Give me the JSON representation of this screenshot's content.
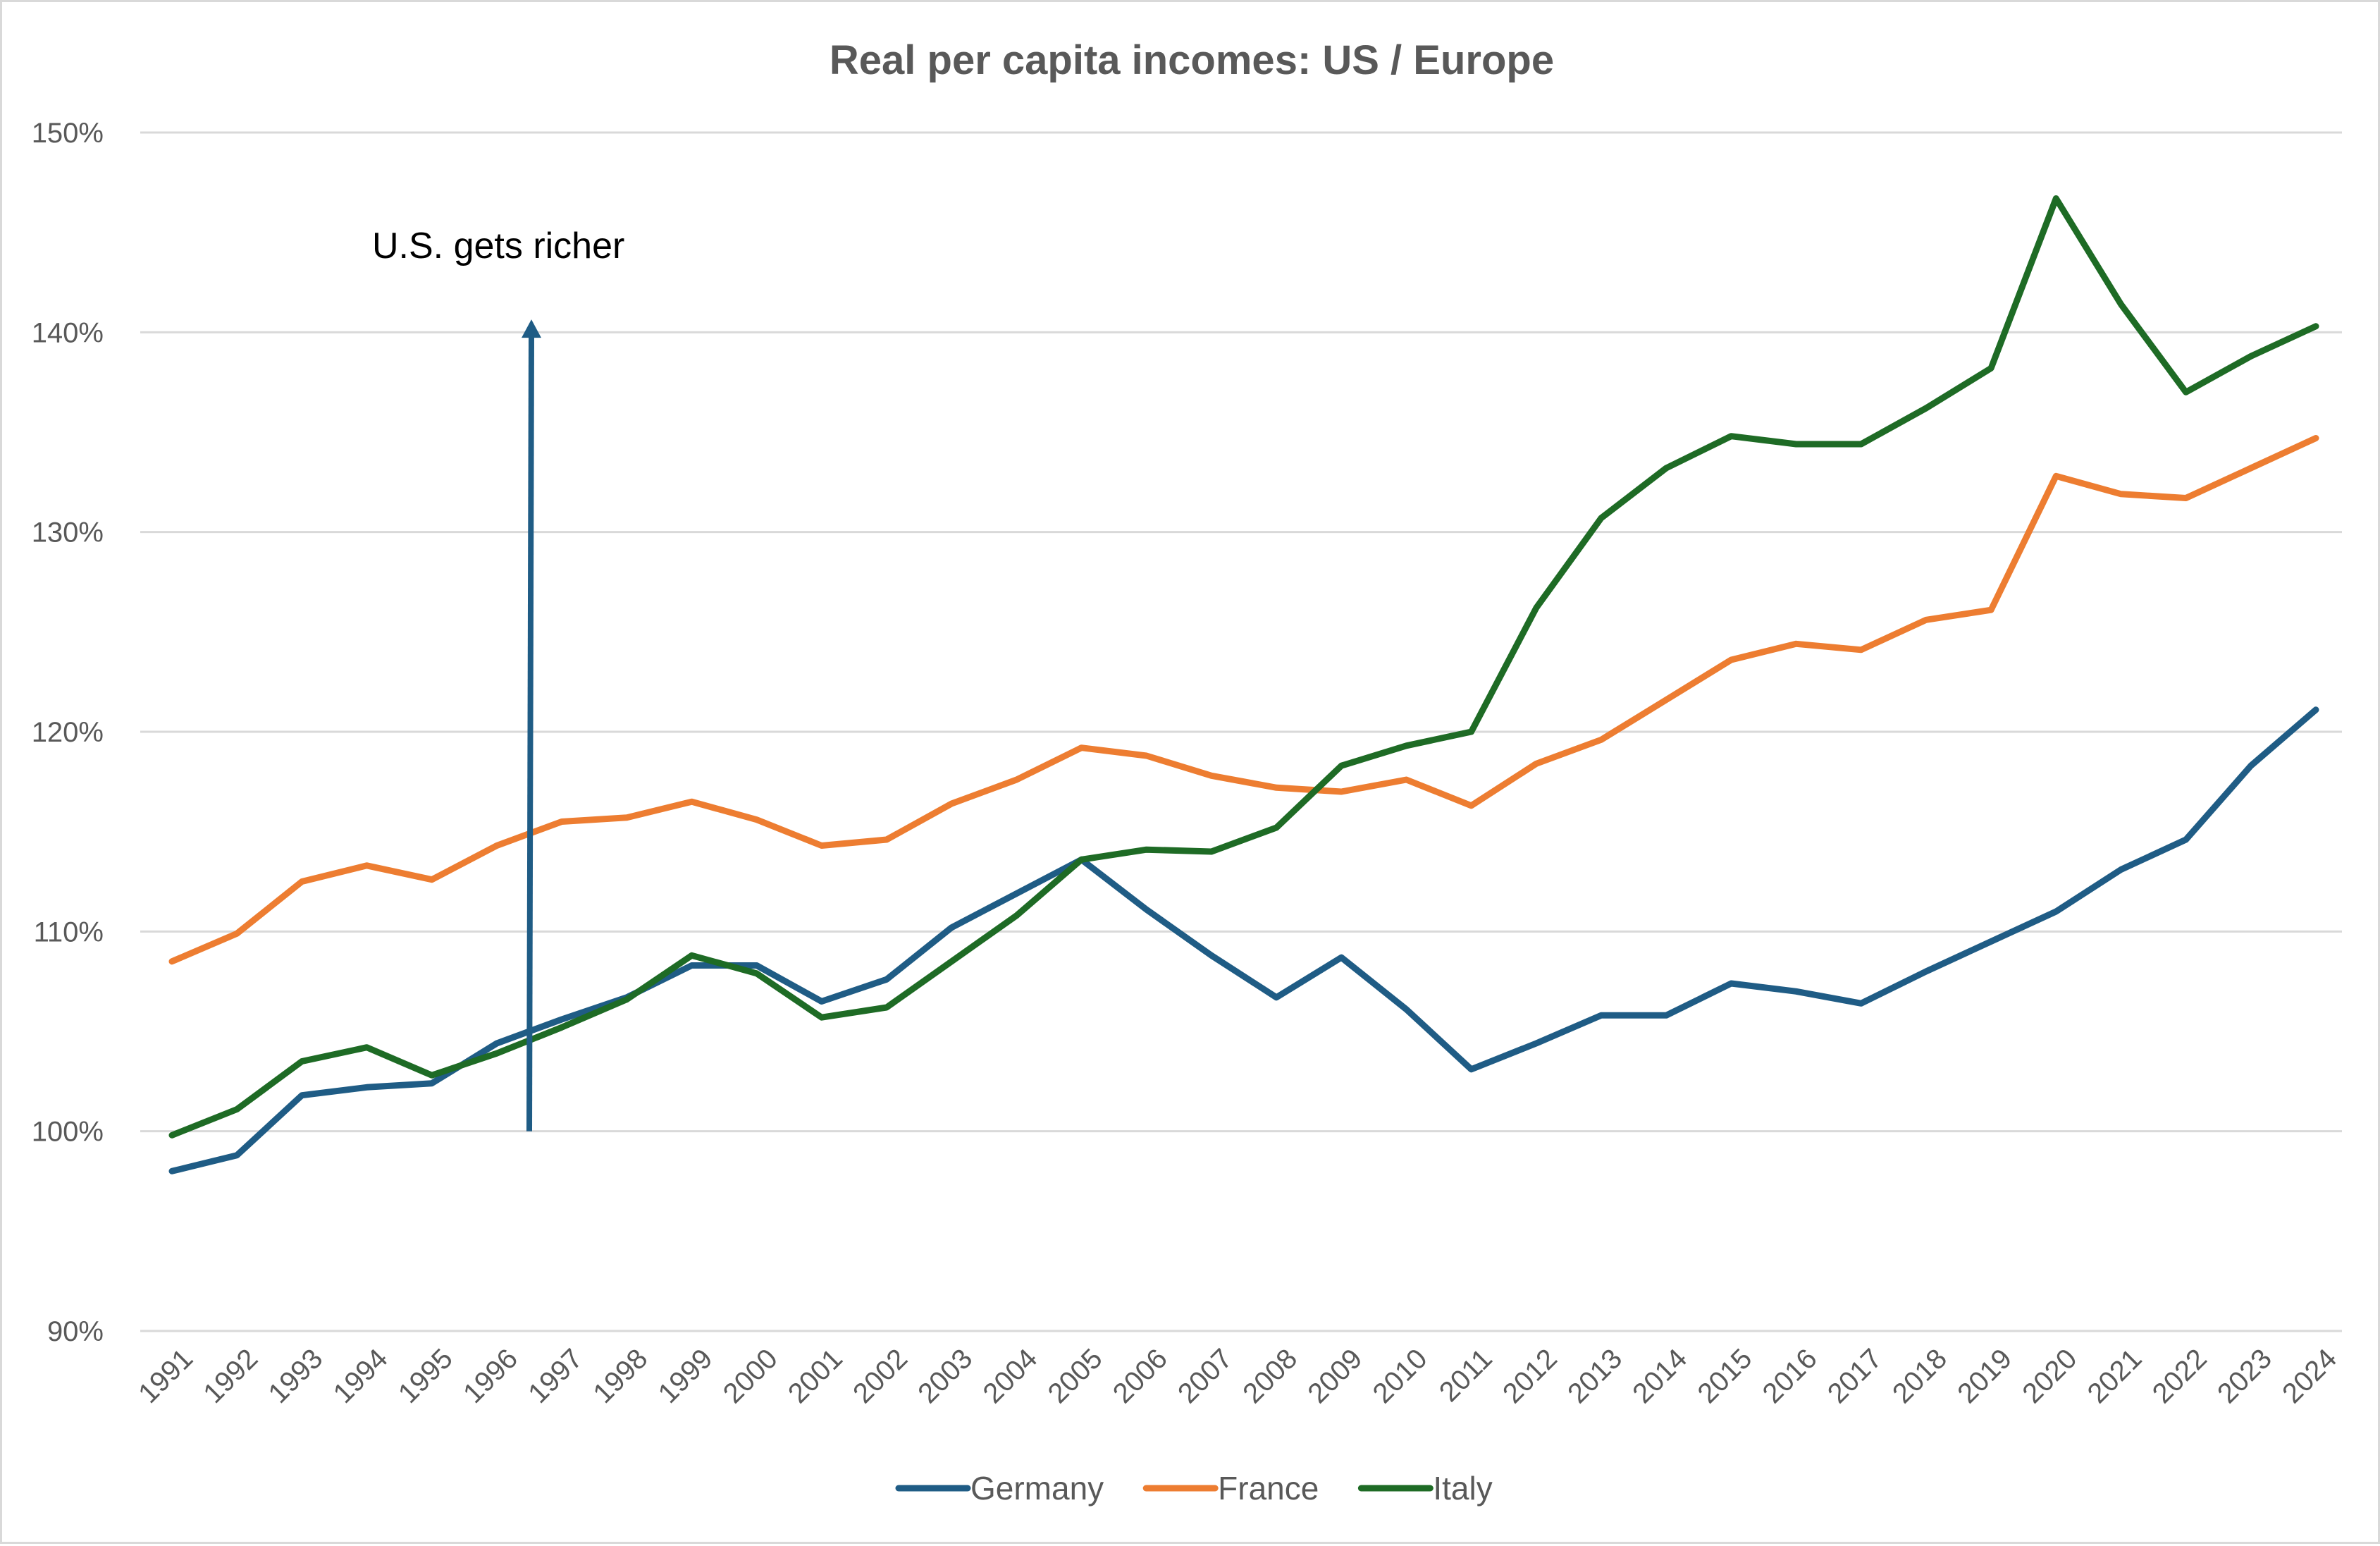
{
  "chart_data": {
    "type": "line",
    "title": "Real per capita incomes: US / Europe",
    "xlabel": "",
    "ylabel": "",
    "ylim": [
      90,
      150
    ],
    "y_ticks": [
      90,
      100,
      110,
      120,
      130,
      140,
      150
    ],
    "y_tick_labels": [
      "90%",
      "100%",
      "110%",
      "120%",
      "130%",
      "140%",
      "150%"
    ],
    "grid": "horizontal",
    "legend_position": "bottom",
    "x": [
      "1991",
      "1992",
      "1993",
      "1994",
      "1995",
      "1996",
      "1997",
      "1998",
      "1999",
      "2000",
      "2001",
      "2002",
      "2003",
      "2004",
      "2005",
      "2006",
      "2007",
      "2008",
      "2009",
      "2010",
      "2011",
      "2012",
      "2013",
      "2014",
      "2015",
      "2016",
      "2017",
      "2018",
      "2019",
      "2020",
      "2021",
      "2022",
      "2023",
      "2024"
    ],
    "series": [
      {
        "name": "Germany",
        "color": "#1f5c85",
        "values": [
          98.0,
          98.8,
          101.8,
          102.2,
          102.4,
          104.4,
          105.6,
          106.7,
          108.3,
          108.3,
          106.5,
          107.6,
          110.2,
          111.9,
          113.6,
          111.1,
          108.8,
          106.7,
          108.7,
          106.1,
          103.1,
          104.4,
          105.8,
          105.8,
          107.4,
          107.0,
          106.4,
          108.0,
          109.5,
          111.0,
          113.1,
          114.6,
          118.3,
          121.1
        ]
      },
      {
        "name": "France",
        "color": "#ed7d31",
        "values": [
          108.5,
          109.9,
          112.5,
          113.3,
          112.6,
          114.3,
          115.5,
          115.7,
          116.5,
          115.6,
          114.3,
          114.6,
          116.4,
          117.6,
          119.2,
          118.8,
          117.8,
          117.2,
          117.0,
          117.6,
          116.3,
          118.4,
          119.6,
          121.6,
          123.6,
          124.4,
          124.1,
          125.6,
          126.1,
          132.8,
          131.9,
          131.7,
          133.2,
          134.7
        ]
      },
      {
        "name": "Italy",
        "color": "#1e6b25",
        "values": [
          99.8,
          101.1,
          103.5,
          104.2,
          102.8,
          103.9,
          105.2,
          106.6,
          108.8,
          107.9,
          105.7,
          106.2,
          108.5,
          110.8,
          113.6,
          114.1,
          114.0,
          115.2,
          118.3,
          119.3,
          120.0,
          126.2,
          130.7,
          133.2,
          134.8,
          134.4,
          134.4,
          136.2,
          138.2,
          146.7,
          141.4,
          137.0,
          138.8,
          140.3
        ]
      }
    ],
    "annotations": [
      {
        "text": "U.S. gets richer",
        "arrow": {
          "x_category": "1996.5",
          "y_from": 100,
          "y_to": 140.5,
          "color": "#1f5c85"
        }
      }
    ]
  }
}
